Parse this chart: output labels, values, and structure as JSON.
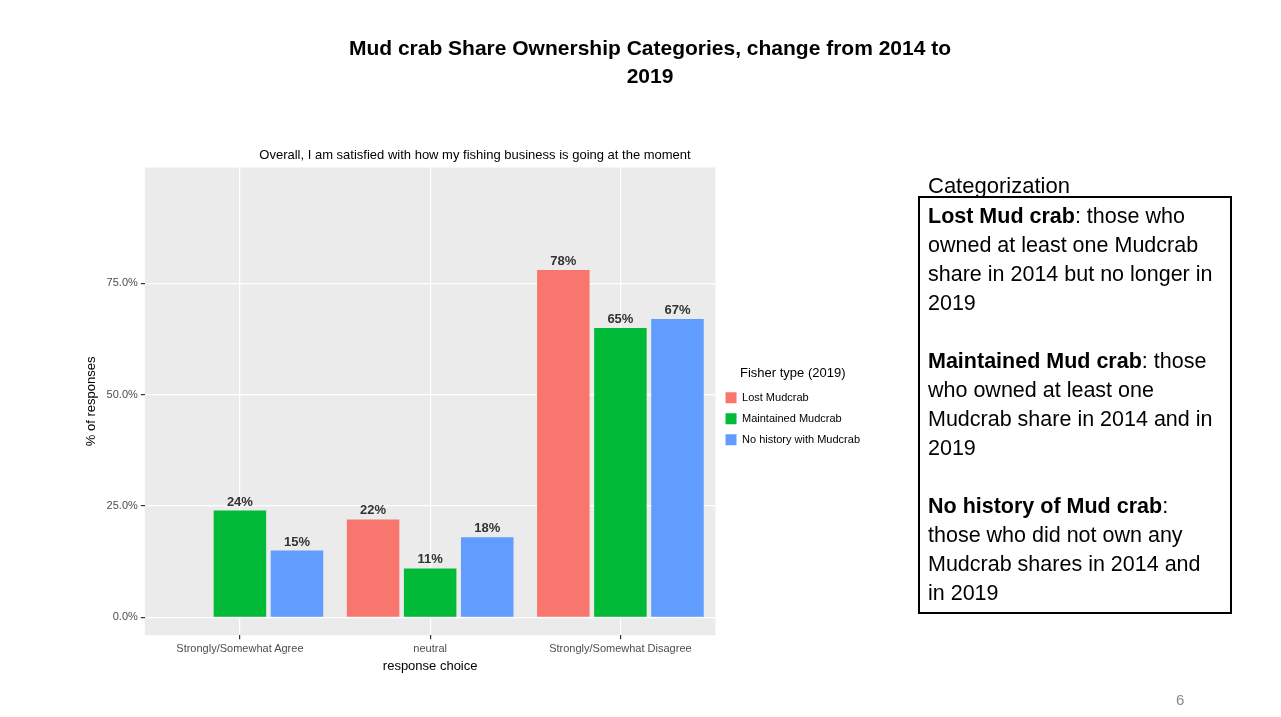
{
  "chart_data": {
    "type": "bar",
    "title": "Mud crab Share Ownership Categories, change from 2014 to 2019",
    "subtitle": "Overall, I am satisfied with how my fishing business is going at the moment",
    "xlabel": "response choice",
    "ylabel": "% of responses",
    "legend_title": "Fisher type (2019)",
    "legend": "right",
    "grid": true,
    "categories": [
      "Strongly/Somewhat Agree",
      "neutral",
      "Strongly/Somewhat Disagree"
    ],
    "series": [
      {
        "name": "Lost Mudcrab",
        "color": "#f8766d",
        "values": [
          null,
          22,
          78
        ],
        "value_labels": [
          null,
          "22%",
          "78%"
        ]
      },
      {
        "name": "Maintained Mudcrab",
        "color": "#00ba38",
        "values": [
          24,
          11,
          65
        ],
        "value_labels": [
          "24%",
          "11%",
          "65%"
        ]
      },
      {
        "name": "No history with Mudcrab",
        "color": "#619cff",
        "values": [
          15,
          18,
          67
        ],
        "value_labels": [
          "15%",
          "18%",
          "67%"
        ]
      }
    ],
    "ylim": [
      -4,
      101
    ],
    "yticks": [
      {
        "value": 0,
        "label": "0.0%"
      },
      {
        "value": 25,
        "label": "25.0%"
      },
      {
        "value": 50,
        "label": "50.0%"
      },
      {
        "value": 75,
        "label": "75.0%"
      }
    ],
    "annotations": [
      "Categorization",
      "Lost Mud crab: those who owned at least one Mudcrab share in 2014 but no longer in 2019",
      "Maintained Mud crab: those who owned at least one Mudcrab share in 2014 and in 2019",
      "No history of Mud crab: those who did not own any Mudcrab shares in 2014 and in 2019",
      "6"
    ]
  }
}
